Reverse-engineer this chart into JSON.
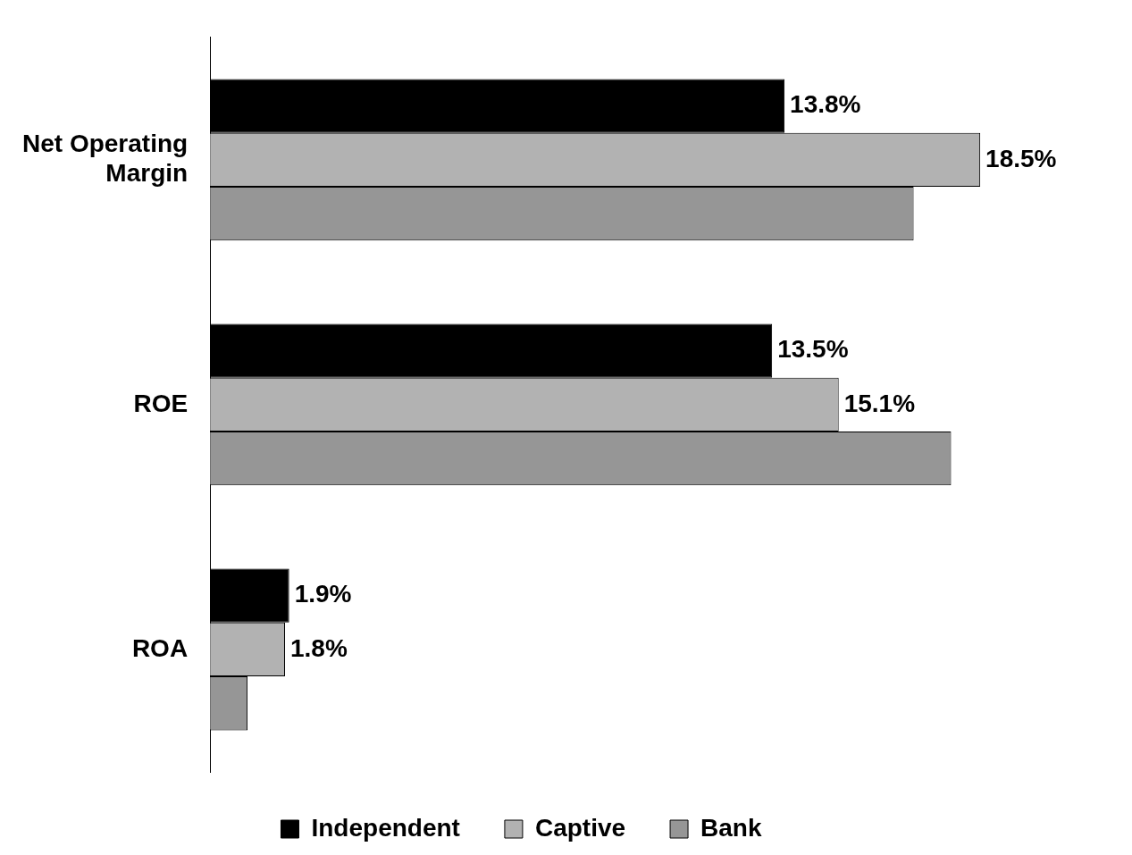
{
  "chart_data": {
    "type": "bar",
    "orientation": "horizontal",
    "categories": [
      "Net Operating Margin",
      "ROE",
      "ROA"
    ],
    "series": [
      {
        "name": "Independent",
        "color": "#000000",
        "values": [
          13.8,
          13.5,
          1.9
        ],
        "value_labels": [
          "13.8%",
          "13.5%",
          "1.9%"
        ]
      },
      {
        "name": "Captive",
        "color": "#b2b2b2",
        "values": [
          18.5,
          15.1,
          1.8
        ],
        "value_labels": [
          "18.5%",
          "15.1%",
          "1.8%"
        ]
      },
      {
        "name": "Bank",
        "color": "#969696",
        "values": [
          16.9,
          17.8,
          0.9
        ],
        "value_labels": [
          null,
          null,
          null
        ]
      }
    ],
    "tick_labels": "y",
    "legend": "bottom"
  }
}
